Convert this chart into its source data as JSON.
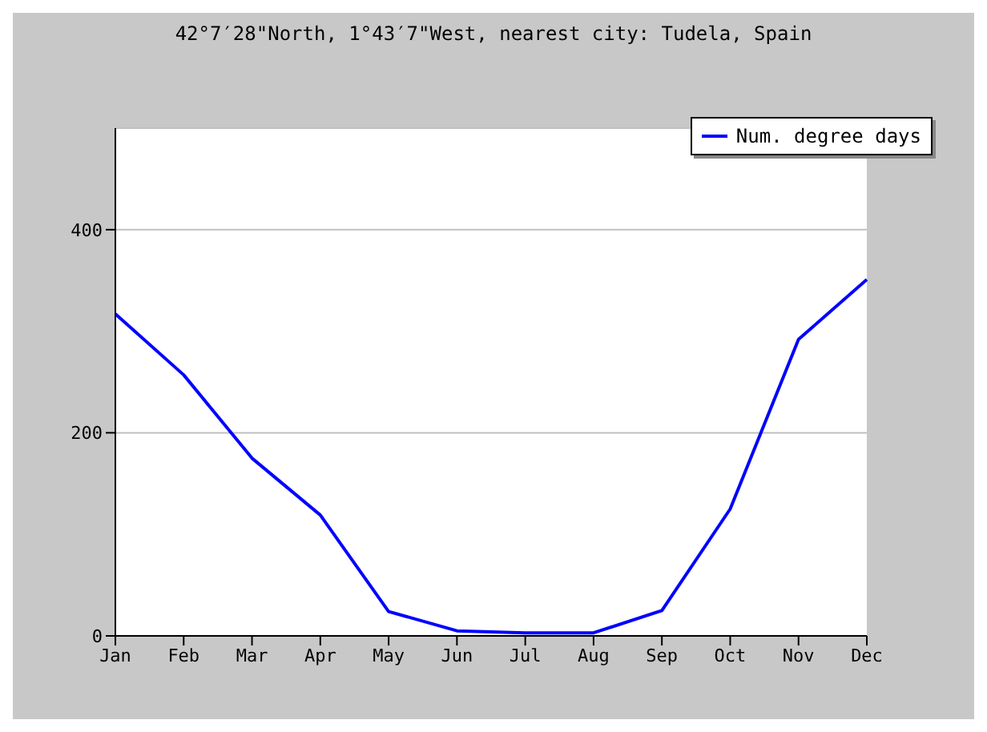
{
  "chart_data": {
    "type": "line",
    "title": "42°7′28\"North, 1°43′7\"West, nearest city: Tudela, Spain",
    "categories": [
      "Jan",
      "Feb",
      "Mar",
      "Apr",
      "May",
      "Jun",
      "Jul",
      "Aug",
      "Sep",
      "Oct",
      "Nov",
      "Dec"
    ],
    "series": [
      {
        "name": "Num. degree days",
        "color": "#0000ff",
        "values": [
          317,
          257,
          175,
          119,
          24,
          5,
          3,
          3,
          25,
          125,
          292,
          351
        ]
      }
    ],
    "ylim": [
      0,
      500
    ],
    "yticks": [
      0,
      200,
      400
    ],
    "grid": "y",
    "legend": "top right",
    "marker": "none"
  }
}
